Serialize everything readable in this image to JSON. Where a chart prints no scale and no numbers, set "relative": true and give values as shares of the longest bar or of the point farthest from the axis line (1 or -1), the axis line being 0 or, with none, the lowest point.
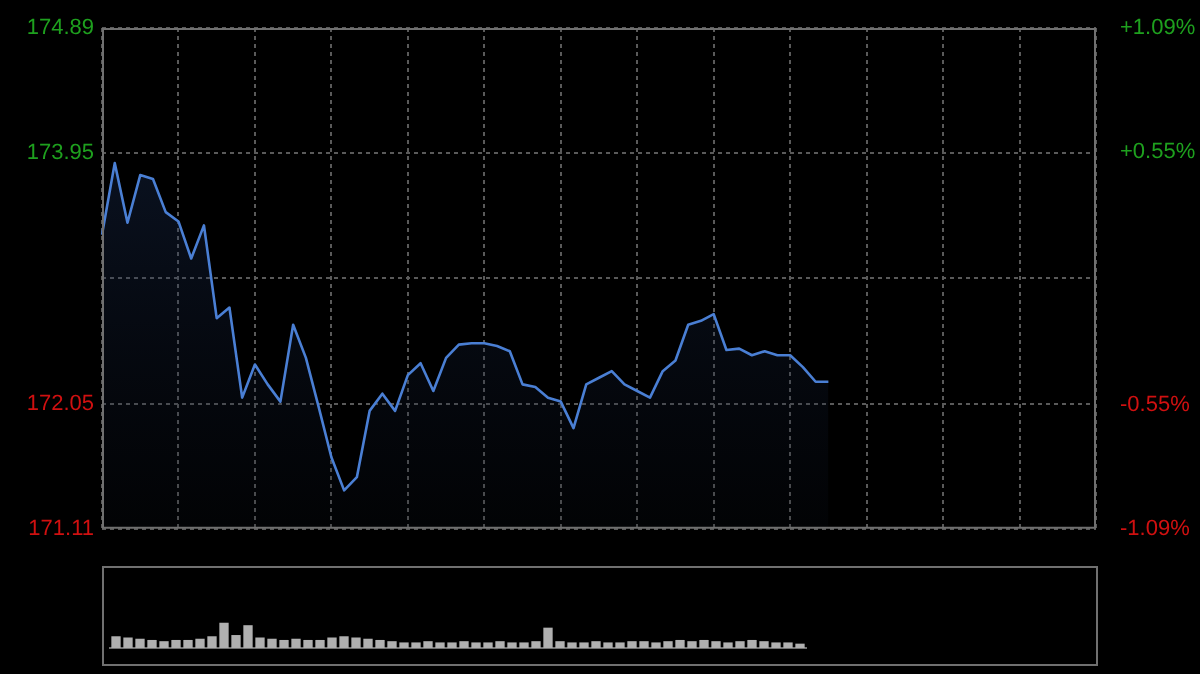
{
  "chart_data": [
    {
      "type": "area",
      "categories": [
        null,
        null,
        null,
        null,
        null,
        null,
        null,
        null,
        null,
        null,
        null,
        null,
        null,
        null,
        null,
        null,
        null,
        null,
        null,
        null,
        null,
        null,
        null,
        null,
        null,
        null,
        null,
        null,
        null,
        null,
        null,
        null,
        null,
        null,
        null,
        null,
        null,
        null,
        null,
        null,
        null,
        null,
        null,
        null,
        null,
        null,
        null,
        null,
        null,
        null,
        null,
        null,
        null,
        null,
        null,
        null,
        null,
        null,
        null,
        null,
        null,
        null,
        null,
        null,
        null,
        null,
        null,
        null,
        null,
        null,
        null,
        null,
        null,
        null,
        null,
        null,
        null,
        null,
        null
      ],
      "series": [
        {
          "color": "#4a7fd4",
          "values": [
            173.33,
            173.87,
            173.42,
            173.78,
            173.75,
            173.5,
            173.43,
            173.15,
            173.4,
            172.7,
            172.78,
            172.1,
            172.35,
            172.2,
            172.07,
            172.65,
            172.4,
            172.03,
            171.65,
            171.4,
            171.5,
            172.0,
            172.13,
            172.0,
            172.27,
            172.36,
            172.15,
            172.4,
            172.5,
            172.51,
            172.51,
            172.49,
            172.45,
            172.2,
            172.18,
            172.1,
            172.07,
            171.87,
            172.2,
            172.25,
            172.3,
            172.2,
            172.15,
            172.1,
            172.3,
            172.38,
            172.65,
            172.68,
            172.73,
            172.46,
            172.47,
            172.42,
            172.45,
            172.42,
            172.42,
            172.33,
            172.22,
            172.22,
            null,
            null,
            null,
            null,
            null,
            null,
            null,
            null,
            null,
            null,
            null,
            null,
            null,
            null,
            null,
            null,
            null,
            null,
            null,
            null,
            null
          ]
        }
      ],
      "ylim": [
        171.11,
        174.89
      ],
      "yticks": [
        171.11,
        172.05,
        {
          "value": 173.0,
          "label": null
        },
        173.95,
        174.89
      ],
      "y2lim": [
        -1.09,
        1.09
      ],
      "y2ticks": [
        {
          "value": -1.09,
          "label": "-1.09%"
        },
        {
          "value": -0.55,
          "label": "-0.55%"
        },
        {
          "value": 0.55,
          "label": "+0.55%"
        },
        {
          "value": 1.09,
          "label": "+1.09%"
        }
      ],
      "grid": true,
      "legend": false,
      "marker": "none",
      "line_style": "solid"
    },
    {
      "type": "bar",
      "relative": true,
      "categories": [
        null,
        null,
        null,
        null,
        null,
        null,
        null,
        null,
        null,
        null,
        null,
        null,
        null,
        null,
        null,
        null,
        null,
        null,
        null,
        null,
        null,
        null,
        null,
        null,
        null,
        null,
        null,
        null,
        null,
        null,
        null,
        null,
        null,
        null,
        null,
        null,
        null,
        null,
        null,
        null,
        null,
        null,
        null,
        null,
        null,
        null,
        null,
        null,
        null,
        null,
        null,
        null,
        null,
        null,
        null,
        null,
        null,
        null
      ],
      "color": "#b0b0b0",
      "values": [
        0.45,
        0.4,
        0.35,
        0.3,
        0.25,
        0.3,
        0.3,
        0.35,
        0.45,
        1.0,
        0.5,
        0.9,
        0.4,
        0.35,
        0.3,
        0.35,
        0.3,
        0.3,
        0.4,
        0.45,
        0.4,
        0.35,
        0.3,
        0.25,
        0.2,
        0.2,
        0.25,
        0.2,
        0.2,
        0.25,
        0.2,
        0.2,
        0.25,
        0.2,
        0.2,
        0.25,
        0.8,
        0.25,
        0.2,
        0.2,
        0.25,
        0.2,
        0.2,
        0.25,
        0.25,
        0.2,
        0.25,
        0.3,
        0.25,
        0.3,
        0.25,
        0.2,
        0.25,
        0.3,
        0.25,
        0.2,
        0.2,
        0.15
      ],
      "legend": false
    }
  ]
}
